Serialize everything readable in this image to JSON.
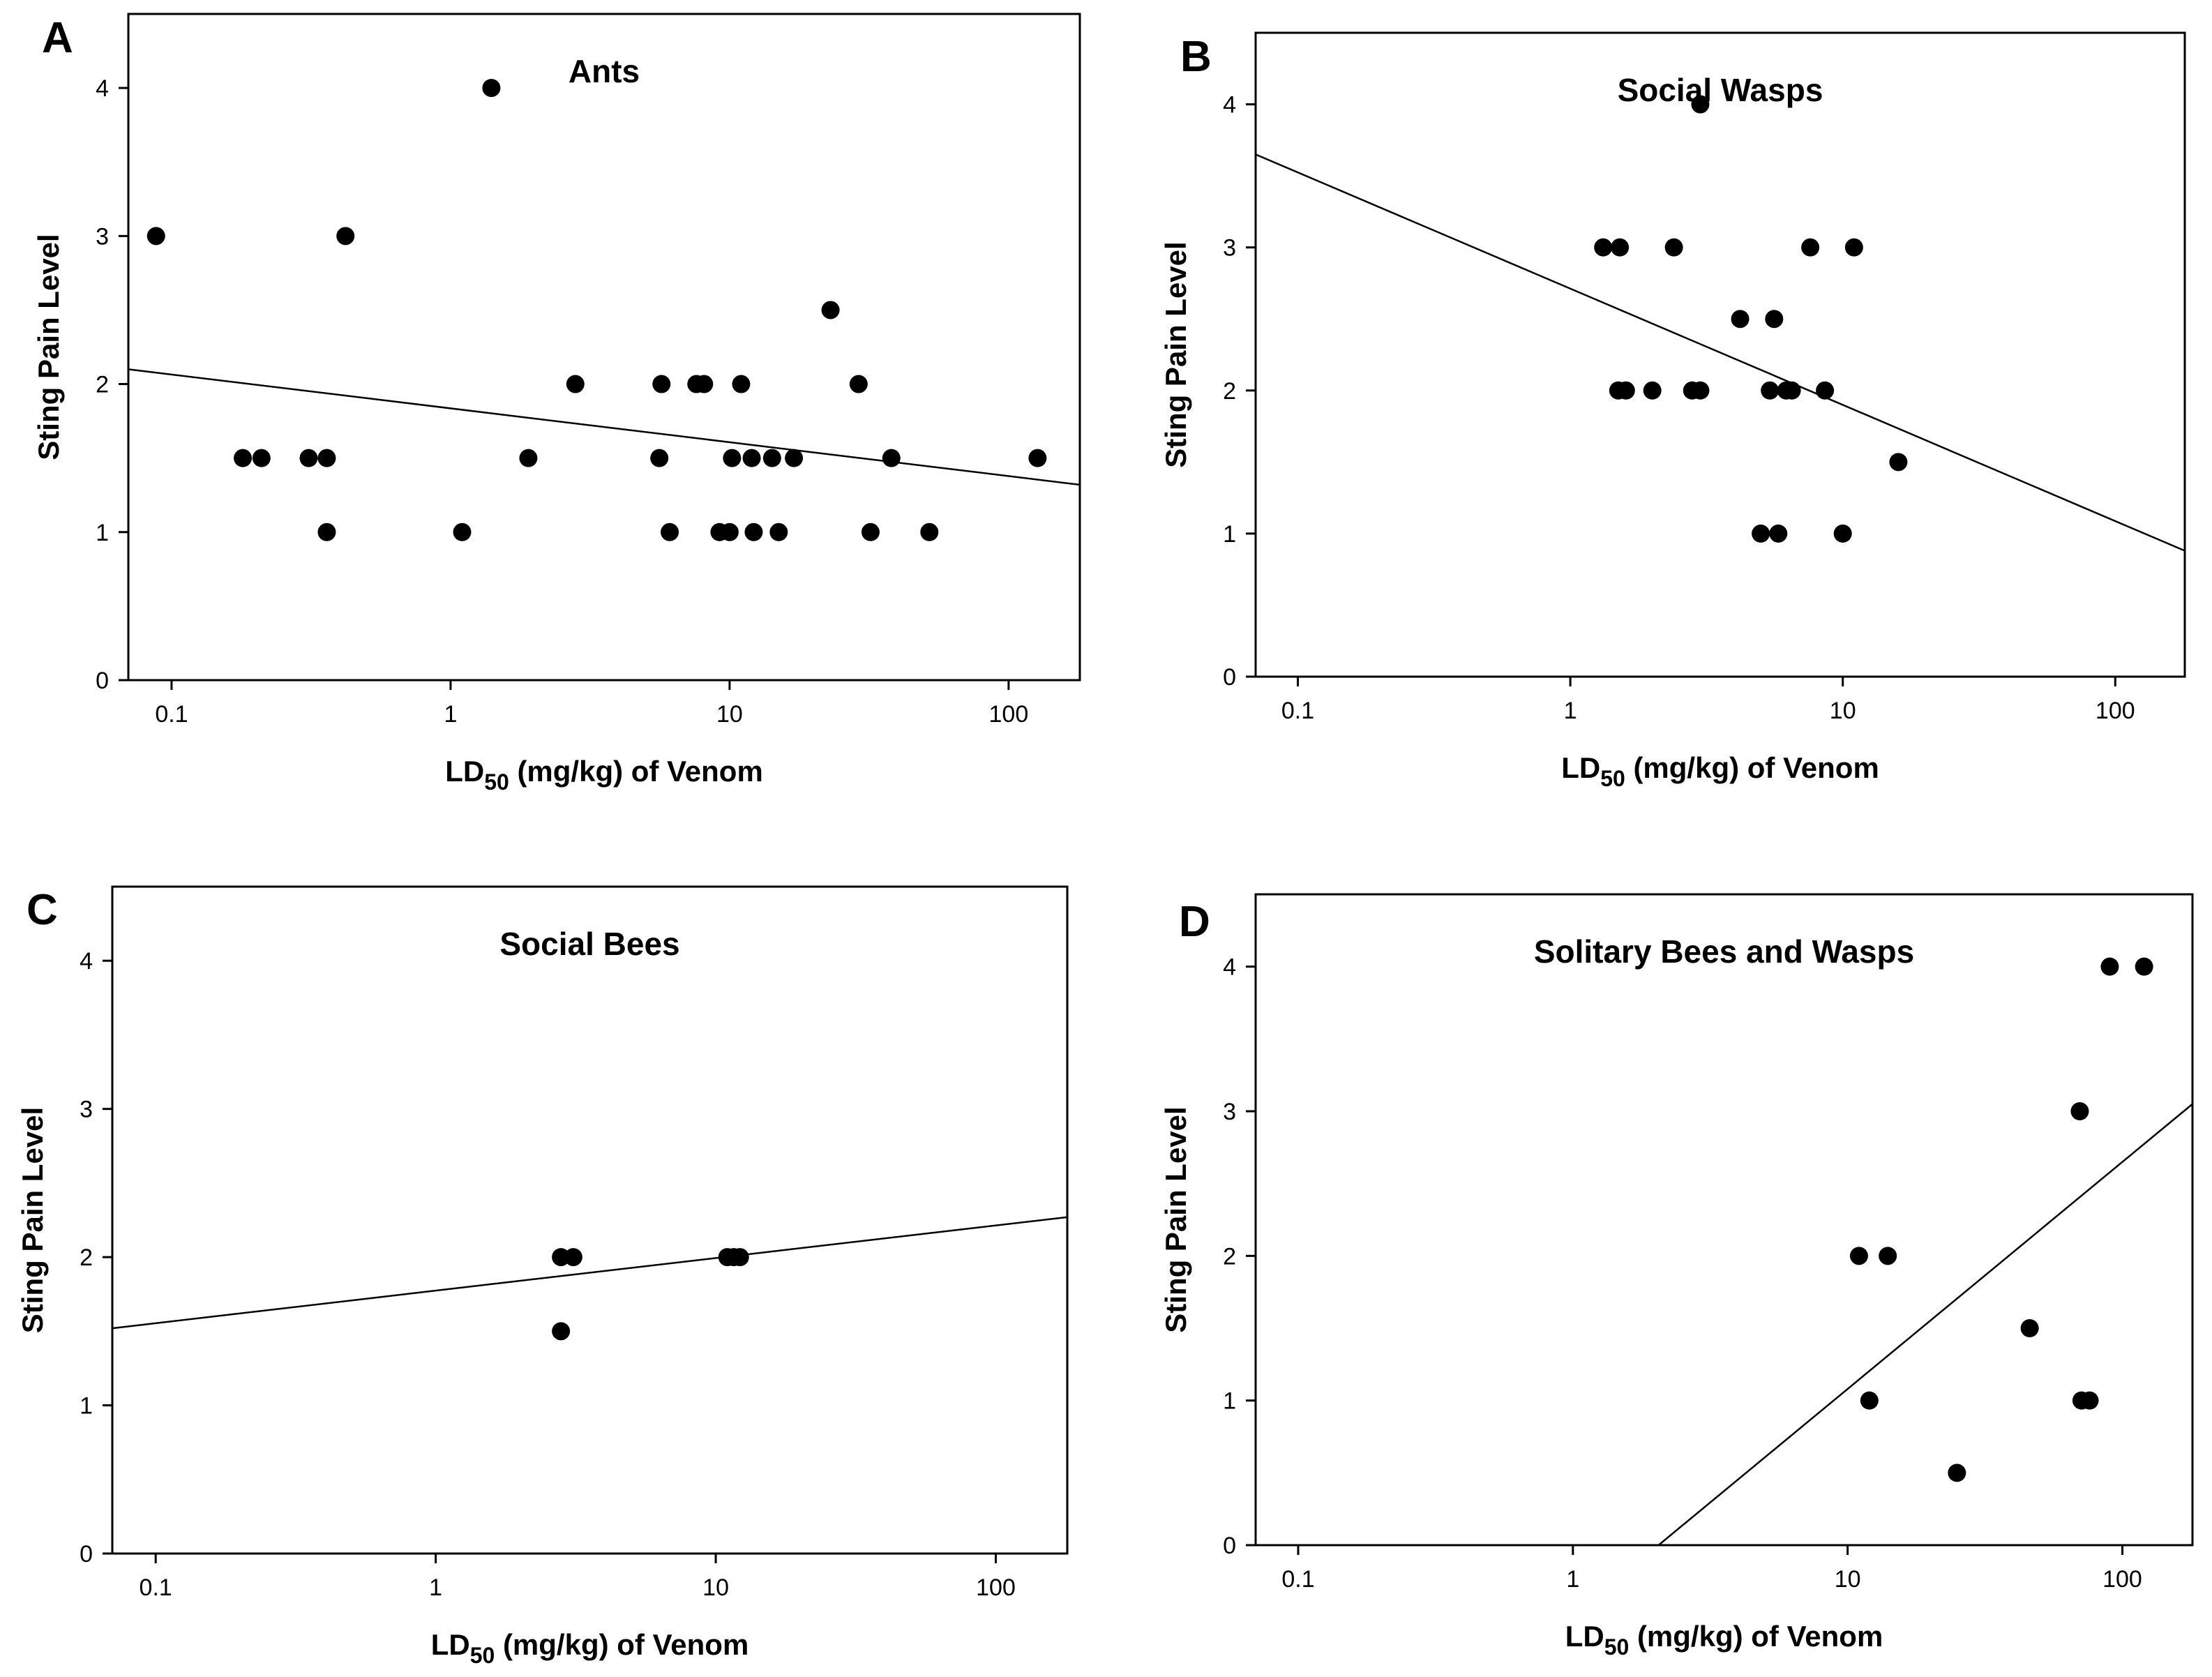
{
  "chart_data": [
    {
      "type": "scatter",
      "panel": "A",
      "title": "Ants",
      "xscale": "log",
      "xlim": [
        0.07,
        180
      ],
      "ylim": [
        0,
        4.5
      ],
      "xticks": [
        0.1,
        1,
        10,
        100
      ],
      "xtick_labels": [
        "0.1",
        "1",
        "10",
        "100"
      ],
      "yticks": [
        0,
        1,
        2,
        3,
        4
      ],
      "ytick_labels": [
        "0",
        "1",
        "2",
        "3",
        "4"
      ],
      "xlabel": "LD",
      "xlabel_sub": "50",
      "xlabel_rest": " (mg/kg) of Venom",
      "ylabel": "Sting Pain Level",
      "x": [
        0.088,
        0.18,
        0.21,
        0.31,
        0.36,
        0.36,
        0.42,
        1.1,
        1.4,
        1.9,
        2.8,
        5.6,
        5.7,
        6.1,
        7.6,
        8.1,
        9.2,
        10,
        10.2,
        11,
        12,
        12.2,
        14.2,
        15,
        17,
        23,
        29,
        32,
        38,
        52,
        127
      ],
      "y": [
        3,
        1.5,
        1.5,
        1.5,
        1.5,
        1,
        3,
        1,
        4,
        1.5,
        2,
        1.5,
        2,
        1,
        2,
        2,
        1,
        1,
        1.5,
        2,
        1.5,
        1,
        1.5,
        1,
        1.5,
        2.5,
        2,
        1,
        1.5,
        1,
        1.5
      ],
      "fit_line": {
        "x": [
          0.07,
          180
        ],
        "y": [
          2.1,
          1.32
        ]
      }
    },
    {
      "type": "scatter",
      "panel": "B",
      "title": "Social Wasps",
      "xscale": "log",
      "xlim": [
        0.07,
        180
      ],
      "ylim": [
        0,
        4.5
      ],
      "xticks": [
        0.1,
        1,
        10,
        100
      ],
      "xtick_labels": [
        "0.1",
        "1",
        "10",
        "100"
      ],
      "yticks": [
        0,
        1,
        2,
        3,
        4
      ],
      "ytick_labels": [
        "0",
        "1",
        "2",
        "3",
        "4"
      ],
      "xlabel": "LD",
      "xlabel_sub": "50",
      "xlabel_rest": " (mg/kg) of Venom",
      "ylabel": "Sting Pain Level",
      "x": [
        1.32,
        1.52,
        1.5,
        1.6,
        2.0,
        2.4,
        2.8,
        3.0,
        3.0,
        4.2,
        5.0,
        5.4,
        5.6,
        5.8,
        6.2,
        6.5,
        7.6,
        8.6,
        10,
        11,
        16
      ],
      "y": [
        3,
        3,
        2,
        2,
        2,
        3,
        2,
        2,
        4,
        2.5,
        1,
        2,
        2.5,
        1,
        2,
        2,
        3,
        2,
        1,
        3,
        1.5
      ],
      "fit_line": {
        "x": [
          0.07,
          180
        ],
        "y": [
          3.65,
          0.88
        ]
      }
    },
    {
      "type": "scatter",
      "panel": "C",
      "title": "Social Bees",
      "xscale": "log",
      "xlim": [
        0.07,
        180
      ],
      "ylim": [
        0,
        4.5
      ],
      "xticks": [
        0.1,
        1,
        10,
        100
      ],
      "xtick_labels": [
        "0.1",
        "1",
        "10",
        "100"
      ],
      "yticks": [
        0,
        1,
        2,
        3,
        4
      ],
      "ytick_labels": [
        "0",
        "1",
        "2",
        "3",
        "4"
      ],
      "xlabel": "LD",
      "xlabel_sub": "50",
      "xlabel_rest": " (mg/kg) of Venom",
      "ylabel": "Sting Pain Level",
      "x": [
        2.8,
        2.8,
        3.1,
        11,
        11.6,
        12.2
      ],
      "y": [
        2,
        1.5,
        2,
        2,
        2,
        2
      ],
      "fit_line": {
        "x": [
          0.07,
          180
        ],
        "y": [
          1.52,
          2.27
        ]
      }
    },
    {
      "type": "scatter",
      "panel": "D",
      "title": "Solitary Bees and Wasps",
      "xscale": "log",
      "xlim": [
        0.07,
        180
      ],
      "ylim": [
        0,
        4.5
      ],
      "xticks": [
        0.1,
        1,
        10,
        100
      ],
      "xtick_labels": [
        "0.1",
        "1",
        "10",
        "100"
      ],
      "yticks": [
        0,
        1,
        2,
        3,
        4
      ],
      "ytick_labels": [
        "0",
        "1",
        "2",
        "3",
        "4"
      ],
      "xlabel": "LD",
      "xlabel_sub": "50",
      "xlabel_rest": " (mg/kg) of Venom",
      "ylabel": "Sting Pain Level",
      "x": [
        11,
        12,
        14,
        25,
        46,
        70,
        71,
        76,
        90,
        120
      ],
      "y": [
        2,
        1,
        2,
        0.5,
        1.5,
        3,
        1,
        1,
        4,
        4
      ],
      "fit_line": {
        "x": [
          2.05,
          180
        ],
        "y": [
          0,
          3.05
        ]
      }
    }
  ]
}
